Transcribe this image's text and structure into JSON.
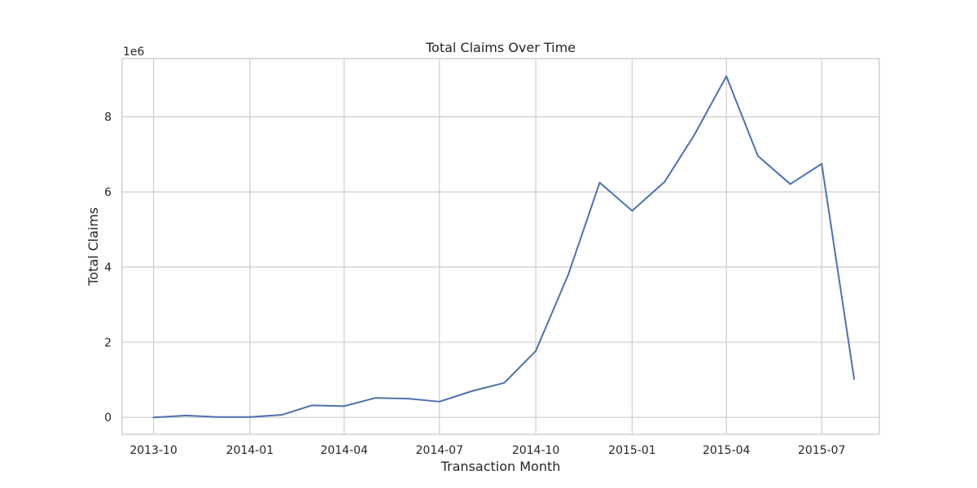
{
  "chart_data": {
    "type": "line",
    "title": "Total Claims Over Time",
    "xlabel": "Transaction Month",
    "ylabel": "Total Claims",
    "y_offset_text": "1e6",
    "y_scale_multiplier": 1000000,
    "xlim": [
      "2013-09-01",
      "2015-08-25"
    ],
    "ylim": [
      -450000,
      9550000
    ],
    "grid": true,
    "x_ticks": [
      "2013-10",
      "2014-01",
      "2014-04",
      "2014-07",
      "2014-10",
      "2015-01",
      "2015-04",
      "2015-07"
    ],
    "y_ticks": [
      0,
      2000000,
      4000000,
      6000000,
      8000000
    ],
    "y_tick_labels": [
      "0",
      "2",
      "4",
      "6",
      "8"
    ],
    "series": [
      {
        "color": "#4c72b0",
        "x": [
          "2013-10-01",
          "2013-11-01",
          "2013-12-01",
          "2014-01-01",
          "2014-02-01",
          "2014-03-01",
          "2014-04-01",
          "2014-05-01",
          "2014-06-01",
          "2014-07-01",
          "2014-08-01",
          "2014-09-01",
          "2014-10-01",
          "2014-11-01",
          "2014-12-01",
          "2015-01-01",
          "2015-02-01",
          "2015-03-01",
          "2015-04-01",
          "2015-05-01",
          "2015-06-01",
          "2015-07-01",
          "2015-08-01"
        ],
        "y": [
          0,
          50000,
          10000,
          10000,
          70000,
          320000,
          300000,
          520000,
          500000,
          420000,
          700000,
          920000,
          1770000,
          3800000,
          6250000,
          5500000,
          6270000,
          7500000,
          9080000,
          6960000,
          6210000,
          6750000,
          1020000
        ]
      }
    ]
  }
}
